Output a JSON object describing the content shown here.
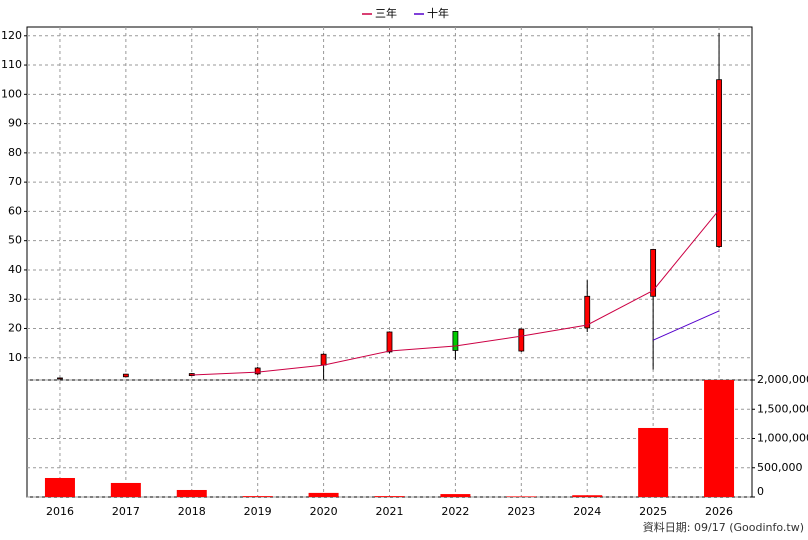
{
  "chart_data": [
    {
      "type": "candlestick",
      "categories": [
        "2016",
        "2017",
        "2018",
        "2019",
        "2020",
        "2021",
        "2022",
        "2023",
        "2024",
        "2025",
        "2026"
      ],
      "open": [
        3.0,
        3.5,
        3.9,
        4.5,
        7.5,
        12.0,
        19.0,
        12.3,
        20.2,
        31.0,
        48.0
      ],
      "high": [
        3.2,
        4.5,
        4.8,
        6.9,
        11.5,
        19.0,
        19.2,
        20.0,
        36.5,
        47.2,
        121.0
      ],
      "low": [
        2.9,
        3.4,
        3.8,
        4.1,
        2.5,
        11.5,
        9.3,
        12.0,
        18.8,
        6.0,
        47.5
      ],
      "close": [
        3.1,
        4.4,
        4.6,
        6.5,
        11.2,
        18.8,
        12.5,
        19.8,
        31.0,
        47.0,
        105.0
      ],
      "up_color": "#ff0000",
      "down_color": "#00cc00",
      "series": [
        {
          "name": "三年",
          "color": "#cc0044",
          "values": [
            null,
            null,
            4.1,
            5.1,
            7.5,
            12.3,
            14.0,
            17.4,
            21.2,
            33.0,
            60.5
          ]
        },
        {
          "name": "十年",
          "color": "#5500cc",
          "values": [
            null,
            null,
            null,
            null,
            null,
            null,
            null,
            null,
            null,
            16.0,
            26.0
          ]
        }
      ],
      "ylim": [
        2.4,
        123
      ],
      "yticks": [
        10,
        20,
        30,
        40,
        50,
        60,
        70,
        80,
        90,
        100,
        110,
        120
      ],
      "grid": true
    },
    {
      "type": "bar",
      "color": "#ff0000",
      "values": [
        325000,
        240000,
        120000,
        15000,
        70000,
        15000,
        50000,
        10000,
        30000,
        1180000,
        2000000
      ],
      "ylim": [
        0,
        2000000
      ],
      "yticks": [
        0,
        {
          "value": 500000,
          "label": "500,000"
        },
        {
          "value": 1000000,
          "label": "1,000,000"
        },
        {
          "value": 1500000,
          "label": "1,500,000"
        },
        {
          "value": 2000000,
          "label": "2,000,000"
        }
      ],
      "grid": true,
      "footer": "資料日期: 09/17  (Goodinfo.tw)"
    }
  ]
}
